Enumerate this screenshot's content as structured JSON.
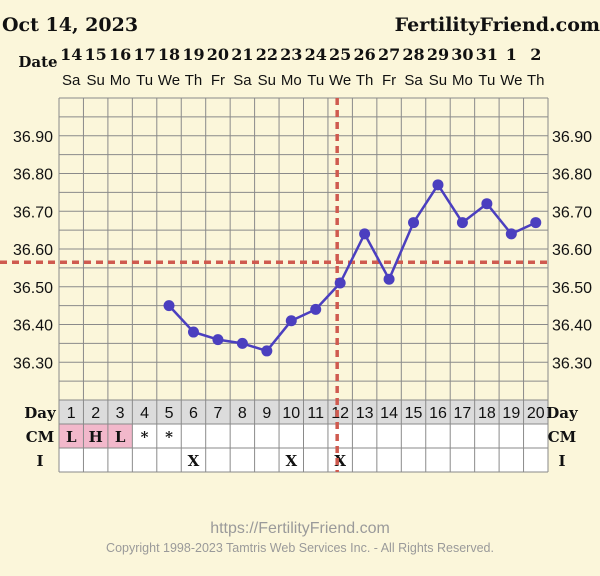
{
  "header": {
    "date": "Oct 14, 2023",
    "brand": "FertilityFriend.com"
  },
  "labels": {
    "date_row": "Date",
    "day_row": "Day",
    "cm_row": "CM",
    "i_row": "I"
  },
  "chart_data": {
    "type": "line",
    "dates": [
      "14",
      "15",
      "16",
      "17",
      "18",
      "19",
      "20",
      "21",
      "22",
      "23",
      "24",
      "25",
      "26",
      "27",
      "28",
      "29",
      "30",
      "31",
      "1",
      "2"
    ],
    "weekdays": [
      "Sa",
      "Su",
      "Mo",
      "Tu",
      "We",
      "Th",
      "Fr",
      "Sa",
      "Su",
      "Mo",
      "Tu",
      "We",
      "Th",
      "Fr",
      "Sa",
      "Su",
      "Mo",
      "Tu",
      "We",
      "Th"
    ],
    "cycle_days": [
      1,
      2,
      3,
      4,
      5,
      6,
      7,
      8,
      9,
      10,
      11,
      12,
      13,
      14,
      15,
      16,
      17,
      18,
      19,
      20
    ],
    "series": [
      {
        "values": [
          null,
          null,
          null,
          null,
          36.45,
          36.38,
          36.36,
          36.35,
          36.33,
          36.41,
          36.44,
          36.51,
          36.64,
          36.52,
          36.67,
          36.77,
          36.67,
          36.72,
          36.64,
          36.67
        ]
      }
    ],
    "yticks": [
      "36.90",
      "36.80",
      "36.70",
      "36.60",
      "36.50",
      "36.40",
      "36.30"
    ],
    "ylim": [
      36.2,
      37.0
    ],
    "coverline": 36.565,
    "ovulation_day": 12,
    "cm": [
      "L",
      "H",
      "L",
      "*",
      "*",
      "",
      "",
      "",
      "",
      "",
      "",
      "",
      "",
      "",
      "",
      "",
      "",
      "",
      "",
      ""
    ],
    "cm_highlight_days": [
      1,
      2,
      3
    ],
    "intercourse": [
      "",
      "",
      "",
      "",
      "",
      "X",
      "",
      "",
      "",
      "X",
      "",
      "X",
      "",
      "",
      "",
      "",
      "",
      "",
      "",
      ""
    ],
    "colors": {
      "line": "#4b3fbf",
      "coverline": "#cf5a4f",
      "grid": "#8a8a8a",
      "cm_highlight": "#f2b8cb",
      "day_row_bg": "#dcdcdc",
      "background": "#fbf6da"
    }
  },
  "footer": {
    "url": "https://FertilityFriend.com",
    "copyright": "Copyright 1998-2023 Tamtris Web Services Inc. - All Rights Reserved."
  }
}
